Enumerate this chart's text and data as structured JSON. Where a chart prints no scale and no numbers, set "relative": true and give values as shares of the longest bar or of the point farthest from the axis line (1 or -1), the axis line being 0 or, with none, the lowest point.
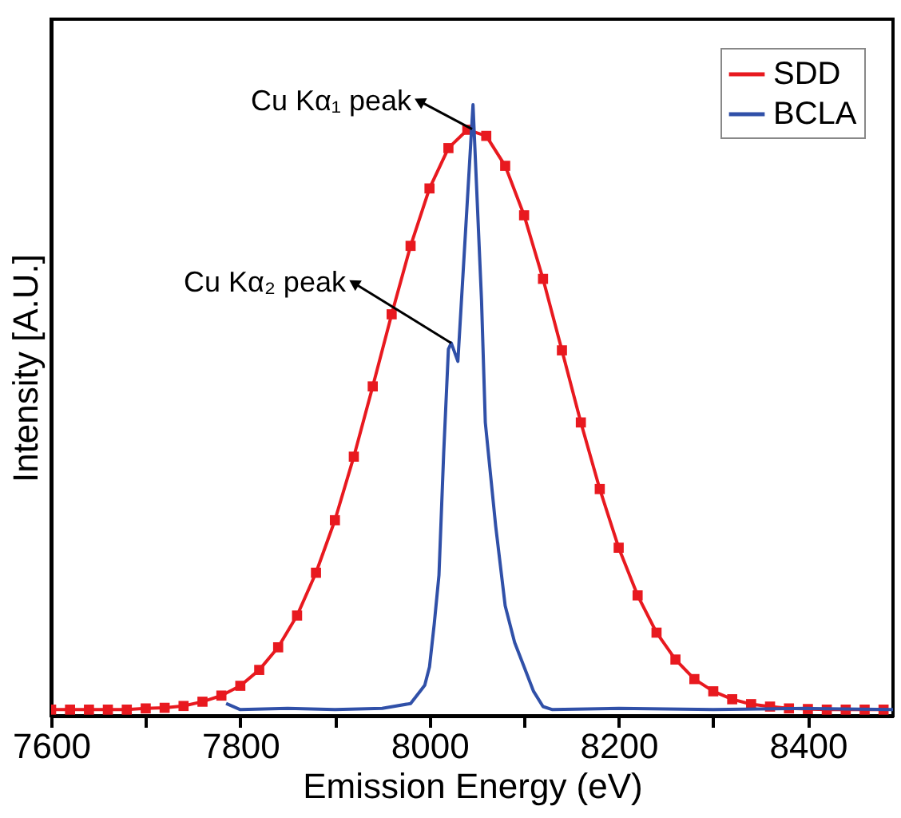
{
  "chart_data": {
    "type": "line",
    "relative": true,
    "xlabel": "Emission Energy (eV)",
    "ylabel": "Intensity [A.U.]",
    "xlim": [
      7600,
      8490
    ],
    "xticks": [
      7600,
      {
        "value": 7700,
        "label": null
      },
      7800,
      {
        "value": 7900,
        "label": null
      },
      8000,
      {
        "value": 8100,
        "label": null
      },
      8200,
      {
        "value": 8300,
        "label": null
      },
      8400
    ],
    "legend": "top right",
    "grid": false,
    "line_style": "solid",
    "series": [
      {
        "name": "SDD",
        "color": "#e8191f",
        "marker": "square",
        "x": [
          7600,
          7620,
          7640,
          7660,
          7680,
          7700,
          7720,
          7740,
          7760,
          7780,
          7800,
          7820,
          7840,
          7860,
          7880,
          7900,
          7920,
          7940,
          7960,
          7980,
          8000,
          8020,
          8040,
          8060,
          8080,
          8100,
          8120,
          8140,
          8160,
          8180,
          8200,
          8220,
          8240,
          8260,
          8280,
          8300,
          8320,
          8340,
          8360,
          8380,
          8400,
          8420,
          8440,
          8460,
          8480
        ],
        "values": [
          0.01,
          0.01,
          0.01,
          0.01,
          0.01,
          0.012,
          0.013,
          0.016,
          0.023,
          0.033,
          0.049,
          0.075,
          0.112,
          0.164,
          0.234,
          0.32,
          0.424,
          0.539,
          0.657,
          0.769,
          0.863,
          0.929,
          0.959,
          0.949,
          0.9,
          0.819,
          0.715,
          0.598,
          0.48,
          0.371,
          0.275,
          0.197,
          0.136,
          0.092,
          0.06,
          0.04,
          0.027,
          0.019,
          0.015,
          0.012,
          0.011,
          0.01,
          0.01,
          0.01,
          0.01
        ]
      },
      {
        "name": "BCLA",
        "color": "#3050a8",
        "marker": "none",
        "x": [
          7785,
          7800,
          7850,
          7900,
          7950,
          7980,
          7990,
          7995,
          8000,
          8005,
          8010,
          8015,
          8020,
          8023,
          8030,
          8046,
          8055,
          8059,
          8070,
          8080,
          8090,
          8100,
          8110,
          8120,
          8130,
          8200,
          8300,
          8400,
          8490
        ],
        "values": [
          0.02,
          0.01,
          0.012,
          0.01,
          0.012,
          0.02,
          0.04,
          0.05,
          0.08,
          0.15,
          0.23,
          0.43,
          0.6,
          0.61,
          0.58,
          1.0,
          0.68,
          0.48,
          0.31,
          0.18,
          0.12,
          0.08,
          0.04,
          0.015,
          0.01,
          0.012,
          0.01,
          0.012,
          0.01
        ]
      }
    ],
    "annotations": [
      {
        "text": "Cu Kα₁ peak",
        "x": 8045,
        "y": 0.96
      },
      {
        "text": "Cu Kα₂ peak",
        "x": 8023,
        "y": 0.61
      }
    ]
  }
}
